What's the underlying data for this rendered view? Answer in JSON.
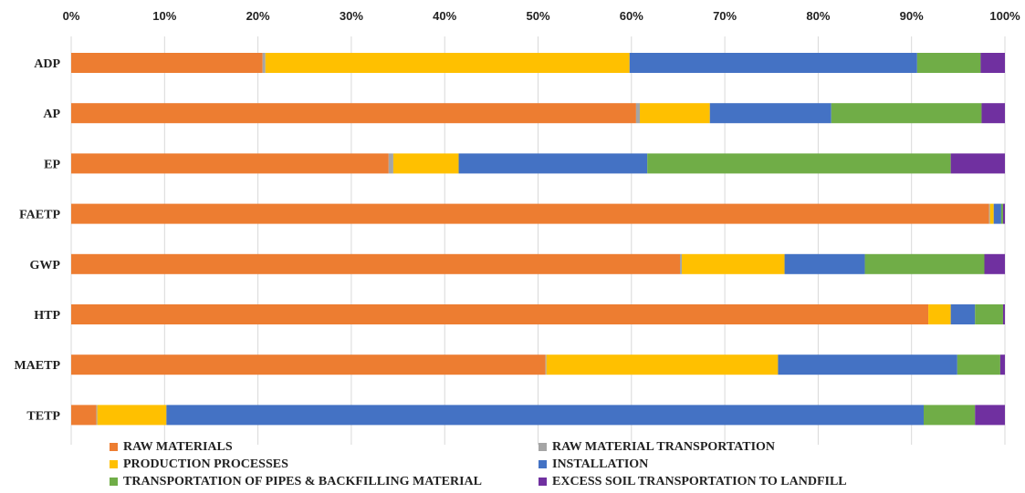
{
  "chart_data": {
    "type": "bar",
    "orientation": "horizontal",
    "stacked": "percent",
    "categories": [
      "ADP",
      "AP",
      "EP",
      "FAETP",
      "GWP",
      "HTP",
      "MAETP",
      "TETP"
    ],
    "series": [
      {
        "name": "RAW MATERIALS",
        "color": "#ED7D31",
        "values": [
          20.5,
          60.5,
          34.0,
          98.3,
          65.2,
          91.8,
          50.8,
          2.7
        ]
      },
      {
        "name": "RAW MATERIAL TRANSPORTATION",
        "color": "#A5A5A5",
        "values": [
          0.3,
          0.4,
          0.5,
          0.1,
          0.2,
          0.0,
          0.1,
          0.1
        ]
      },
      {
        "name": "PRODUCTION PROCESSES",
        "color": "#FFC000",
        "values": [
          39.0,
          7.5,
          7.0,
          0.4,
          11.0,
          2.4,
          24.8,
          7.4
        ]
      },
      {
        "name": "INSTALLATION",
        "color": "#4472C4",
        "values": [
          30.8,
          13.0,
          20.2,
          0.8,
          8.6,
          2.6,
          19.2,
          81.1
        ]
      },
      {
        "name": "TRANSPORTATION OF PIPES & BACKFILLING MATERIAL",
        "color": "#70AD47",
        "values": [
          6.8,
          16.1,
          32.5,
          0.2,
          12.8,
          3.0,
          4.6,
          5.5
        ]
      },
      {
        "name": "EXCESS SOIL TRANSPORTATION TO LANDFILL",
        "color": "#7030A0",
        "values": [
          2.6,
          2.5,
          5.8,
          0.2,
          2.2,
          0.2,
          0.5,
          3.2
        ]
      }
    ],
    "xlim": [
      0,
      100
    ],
    "x_ticks": [
      "0%",
      "10%",
      "20%",
      "30%",
      "40%",
      "50%",
      "60%",
      "70%",
      "80%",
      "90%",
      "100%"
    ],
    "x_axis_position": "top",
    "grid": true,
    "legend_position": "bottom",
    "title": "",
    "xlabel": "",
    "ylabel": ""
  }
}
